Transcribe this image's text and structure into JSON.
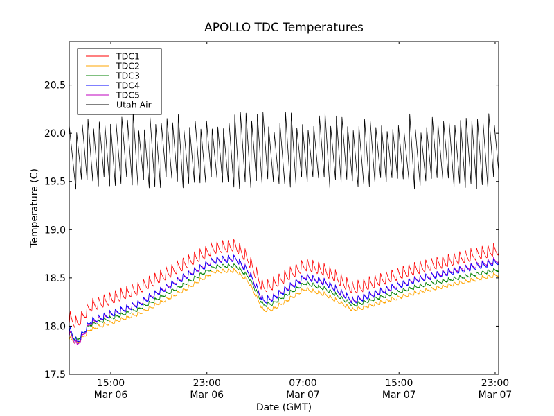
{
  "chart_data": {
    "type": "line",
    "title": "APOLLO TDC Temperatures",
    "xlabel": "Date (GMT)",
    "ylabel": "Temperature (C)",
    "x_unit": "hours since Mar 06 00:00 GMT",
    "xlim": [
      11.54,
      47.29
    ],
    "ylim": [
      17.5,
      20.95
    ],
    "grid": false,
    "legend_position": "top-left",
    "x_ticks": [
      {
        "value": 15,
        "label_time": "15:00",
        "label_date": "Mar 06"
      },
      {
        "value": 23,
        "label_time": "23:00",
        "label_date": "Mar 06"
      },
      {
        "value": 31,
        "label_time": "07:00",
        "label_date": "Mar 07"
      },
      {
        "value": 39,
        "label_time": "15:00",
        "label_date": "Mar 07"
      },
      {
        "value": 47,
        "label_time": "23:00",
        "label_date": "Mar 07"
      }
    ],
    "y_ticks": [
      {
        "value": 17.5,
        "label": "17.5"
      },
      {
        "value": 18.0,
        "label": "18.0"
      },
      {
        "value": 18.5,
        "label": "18.5"
      },
      {
        "value": 19.0,
        "label": "19.0"
      },
      {
        "value": 19.5,
        "label": "19.5"
      },
      {
        "value": 20.0,
        "label": "20.0"
      },
      {
        "value": 20.5,
        "label": "20.5"
      }
    ],
    "cycle_period_hours": 0.47,
    "series": [
      {
        "name": "TDC1",
        "color": "#ff0000",
        "trend_x": [
          11.54,
          12.2,
          13.3,
          17.3,
          21.3,
          23.6,
          25.4,
          26.5,
          27.7,
          28.5,
          31.2,
          32.9,
          35.2,
          40.4,
          47.29
        ],
        "trend_y": [
          18.03,
          17.97,
          18.15,
          18.33,
          18.6,
          18.75,
          18.78,
          18.63,
          18.34,
          18.38,
          18.58,
          18.52,
          18.33,
          18.54,
          18.74
        ],
        "sawtooth_amplitude": 0.13
      },
      {
        "name": "TDC2",
        "color": "#ffa500",
        "trend_x": [
          11.54,
          12.2,
          13.3,
          17.3,
          21.3,
          23.6,
          25.4,
          26.5,
          27.7,
          28.5,
          31.2,
          32.9,
          35.2,
          40.4,
          47.29
        ],
        "trend_y": [
          17.86,
          17.81,
          17.95,
          18.11,
          18.37,
          18.55,
          18.56,
          18.44,
          18.15,
          18.16,
          18.37,
          18.31,
          18.15,
          18.33,
          18.52
        ],
        "sawtooth_amplitude": 0.04
      },
      {
        "name": "TDC3",
        "color": "#008000",
        "trend_x": [
          11.54,
          12.2,
          13.3,
          17.3,
          21.3,
          23.6,
          25.4,
          26.5,
          27.7,
          28.5,
          31.2,
          32.9,
          35.2,
          40.4,
          47.29
        ],
        "trend_y": [
          17.91,
          17.84,
          18.0,
          18.16,
          18.43,
          18.6,
          18.61,
          18.49,
          18.2,
          18.22,
          18.43,
          18.37,
          18.2,
          18.39,
          18.57
        ],
        "sawtooth_amplitude": 0.04
      },
      {
        "name": "TDC4",
        "color": "#0000ff",
        "trend_x": [
          11.54,
          12.2,
          13.3,
          17.3,
          21.3,
          23.6,
          25.4,
          26.5,
          27.7,
          28.5,
          31.2,
          32.9,
          35.2,
          40.4,
          47.29
        ],
        "trend_y": [
          17.94,
          17.8,
          18.02,
          18.2,
          18.49,
          18.65,
          18.67,
          18.53,
          18.23,
          18.26,
          18.48,
          18.42,
          18.23,
          18.45,
          18.64
        ],
        "sawtooth_amplitude": 0.07
      },
      {
        "name": "TDC5",
        "color": "#bf00bf",
        "trend_x": [
          11.54,
          12.2,
          13.3,
          17.3,
          21.3,
          23.6,
          25.4,
          26.5,
          27.7,
          28.5,
          31.2,
          32.9,
          35.2,
          40.4,
          47.29
        ],
        "trend_y": [
          17.91,
          17.78,
          18.01,
          18.21,
          18.5,
          18.66,
          18.68,
          18.54,
          18.24,
          18.27,
          18.49,
          18.43,
          18.24,
          18.46,
          18.66
        ],
        "sawtooth_amplitude": 0.06
      },
      {
        "name": "Utah Air",
        "color": "#000000",
        "range_min": [
          19.42,
          19.55
        ],
        "range_max": [
          20.0,
          20.22
        ],
        "typical_low": 19.48,
        "typical_high": 20.1,
        "sawtooth_amplitude": 0.6
      }
    ]
  }
}
